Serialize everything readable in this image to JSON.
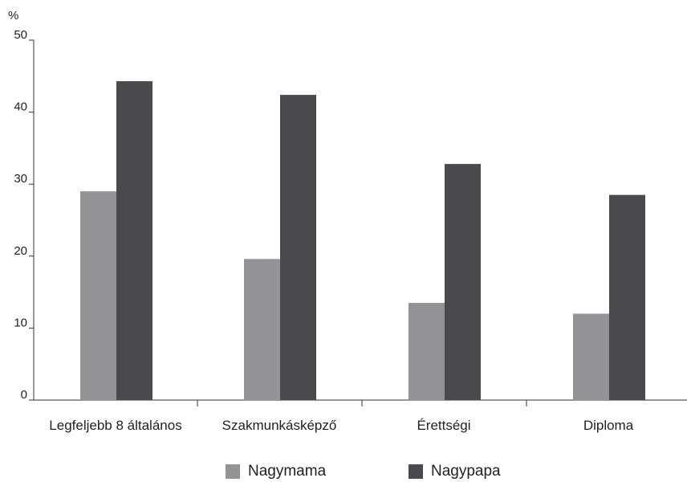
{
  "chart_data": {
    "type": "bar",
    "unit": "%",
    "categories": [
      "Legfeljebb 8 általános",
      "Szakmunkásképző",
      "Érettségi",
      "Diploma"
    ],
    "series": [
      {
        "name": "Nagymama",
        "color": "#939395",
        "values": [
          29.0,
          19.6,
          13.5,
          12.0
        ]
      },
      {
        "name": "Nagypapa",
        "color": "#4a4a4c",
        "values": [
          44.3,
          42.4,
          32.8,
          28.5
        ]
      }
    ],
    "yticks": [
      "0",
      "10",
      "20",
      "30",
      "40",
      "50"
    ],
    "ylim": [
      0,
      50
    ],
    "legend_position": "bottom-center",
    "grid": false,
    "axis_color": "#333333"
  }
}
